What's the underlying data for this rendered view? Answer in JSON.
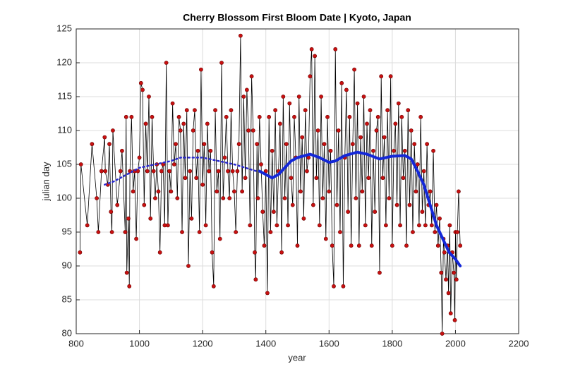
{
  "chart_data": {
    "type": "line",
    "title": "Cherry Blossom First Bloom Date | Kyoto, Japan",
    "x_label": "year",
    "y_label": "julian day",
    "xlim": [
      800,
      2200
    ],
    "xticks": [
      800,
      1000,
      1200,
      1400,
      1600,
      1800,
      2000,
      2200
    ],
    "ylim": [
      80,
      125
    ],
    "yticks": [
      80,
      85,
      90,
      95,
      100,
      105,
      110,
      115,
      120,
      125
    ],
    "grid": true,
    "series": [
      {
        "color": "#000000",
        "marker_color": "#c81010",
        "linestyle": "solid",
        "markers": true,
        "x": [
          812,
          815,
          835,
          850,
          865,
          870,
          880,
          890,
          892,
          900,
          905,
          910,
          913,
          916,
          930,
          940,
          945,
          955,
          958,
          960,
          965,
          968,
          970,
          975,
          980,
          985,
          990,
          995,
          1000,
          1005,
          1010,
          1015,
          1020,
          1025,
          1030,
          1035,
          1040,
          1045,
          1050,
          1055,
          1060,
          1065,
          1070,
          1075,
          1080,
          1085,
          1090,
          1095,
          1100,
          1105,
          1110,
          1115,
          1120,
          1125,
          1130,
          1135,
          1140,
          1145,
          1150,
          1155,
          1160,
          1165,
          1170,
          1175,
          1180,
          1185,
          1190,
          1195,
          1200,
          1205,
          1210,
          1215,
          1220,
          1225,
          1230,
          1235,
          1240,
          1245,
          1250,
          1255,
          1260,
          1265,
          1270,
          1275,
          1280,
          1285,
          1290,
          1295,
          1300,
          1305,
          1310,
          1315,
          1320,
          1325,
          1330,
          1335,
          1340,
          1345,
          1350,
          1355,
          1360,
          1365,
          1368,
          1372,
          1375,
          1380,
          1385,
          1390,
          1395,
          1400,
          1405,
          1410,
          1415,
          1420,
          1425,
          1430,
          1435,
          1440,
          1445,
          1450,
          1455,
          1460,
          1465,
          1470,
          1475,
          1480,
          1485,
          1490,
          1495,
          1500,
          1505,
          1510,
          1515,
          1520,
          1525,
          1530,
          1535,
          1540,
          1545,
          1550,
          1555,
          1560,
          1565,
          1570,
          1575,
          1580,
          1585,
          1590,
          1595,
          1600,
          1605,
          1610,
          1615,
          1620,
          1625,
          1630,
          1635,
          1640,
          1645,
          1650,
          1655,
          1660,
          1665,
          1670,
          1675,
          1680,
          1685,
          1690,
          1695,
          1700,
          1705,
          1710,
          1715,
          1720,
          1725,
          1730,
          1735,
          1740,
          1745,
          1750,
          1755,
          1760,
          1765,
          1770,
          1775,
          1780,
          1785,
          1790,
          1795,
          1800,
          1805,
          1810,
          1815,
          1820,
          1825,
          1830,
          1835,
          1840,
          1845,
          1850,
          1855,
          1860,
          1865,
          1870,
          1875,
          1880,
          1885,
          1890,
          1895,
          1900,
          1905,
          1910,
          1915,
          1920,
          1925,
          1930,
          1935,
          1940,
          1945,
          1950,
          1955,
          1958,
          1962,
          1965,
          1970,
          1975,
          1978,
          1982,
          1985,
          1990,
          1995,
          1998,
          2000,
          2003,
          2006,
          2010,
          2015
        ],
        "values": [
          92,
          105,
          96,
          108,
          100,
          95,
          104,
          109,
          104,
          102,
          108,
          98,
          95,
          110,
          99,
          104,
          107,
          95,
          112,
          89,
          97,
          87,
          104,
          112,
          101,
          104,
          94,
          104,
          106,
          117,
          116,
          99,
          111,
          104,
          115,
          97,
          112,
          104,
          100,
          105,
          101,
          92,
          104,
          105,
          96,
          120,
          96,
          104,
          101,
          114,
          105,
          108,
          100,
          112,
          110,
          95,
          111,
          103,
          113,
          90,
          104,
          97,
          110,
          113,
          103,
          107,
          95,
          119,
          102,
          108,
          96,
          111,
          104,
          107,
          92,
          87,
          113,
          101,
          104,
          94,
          120,
          100,
          106,
          112,
          104,
          100,
          113,
          104,
          101,
          95,
          104,
          108,
          124,
          101,
          115,
          103,
          116,
          110,
          96,
          118,
          110,
          92,
          88,
          108,
          100,
          112,
          105,
          98,
          93,
          104,
          86,
          112,
          95,
          107,
          98,
          113,
          96,
          104,
          111,
          92,
          115,
          100,
          108,
          96,
          114,
          103,
          99,
          112,
          106,
          93,
          115,
          101,
          109,
          97,
          113,
          104,
          106,
          118,
          122,
          99,
          121,
          103,
          110,
          96,
          115,
          100,
          108,
          94,
          112,
          101,
          107,
          93,
          87,
          122,
          99,
          110,
          95,
          117,
          87,
          106,
          116,
          98,
          112,
          93,
          108,
          119,
          100,
          114,
          93,
          109,
          101,
          115,
          96,
          111,
          103,
          113,
          93,
          107,
          98,
          110,
          112,
          89,
          118,
          103,
          109,
          96,
          113,
          100,
          118,
          93,
          107,
          111,
          99,
          114,
          96,
          112,
          103,
          107,
          93,
          113,
          99,
          110,
          95,
          108,
          101,
          105,
          96,
          112,
          98,
          104,
          96,
          108,
          99,
          101,
          96,
          107,
          95,
          99,
          93,
          97,
          89,
          80,
          94,
          92,
          88,
          93,
          86,
          96,
          83,
          92,
          89,
          82,
          95,
          88,
          95,
          101,
          93
        ]
      },
      {
        "color": "#2a2ad0",
        "linestyle": "dotted",
        "markers": false,
        "x": [
          890,
          920,
          960,
          1000,
          1050,
          1100,
          1130,
          1200,
          1300,
          1370
        ],
        "values": [
          102,
          102.5,
          103.5,
          104.5,
          105,
          105.5,
          106,
          106,
          105,
          104
        ]
      },
      {
        "color": "#1428d8",
        "linestyle": "solid",
        "markers": false,
        "x": [
          1380,
          1400,
          1420,
          1440,
          1460,
          1480,
          1500,
          1540,
          1570,
          1600,
          1620,
          1650,
          1690,
          1720,
          1760,
          1800,
          1840,
          1860,
          1880,
          1900,
          1920,
          1940,
          1960,
          1980,
          2000,
          2015
        ],
        "values": [
          104,
          103.5,
          103,
          103.5,
          104.5,
          105.5,
          106,
          106.5,
          106,
          105.3,
          105.5,
          106.3,
          106.8,
          106.5,
          105.8,
          106.2,
          106.3,
          105.8,
          104,
          102,
          99,
          96,
          94,
          92,
          91,
          90
        ]
      }
    ]
  }
}
